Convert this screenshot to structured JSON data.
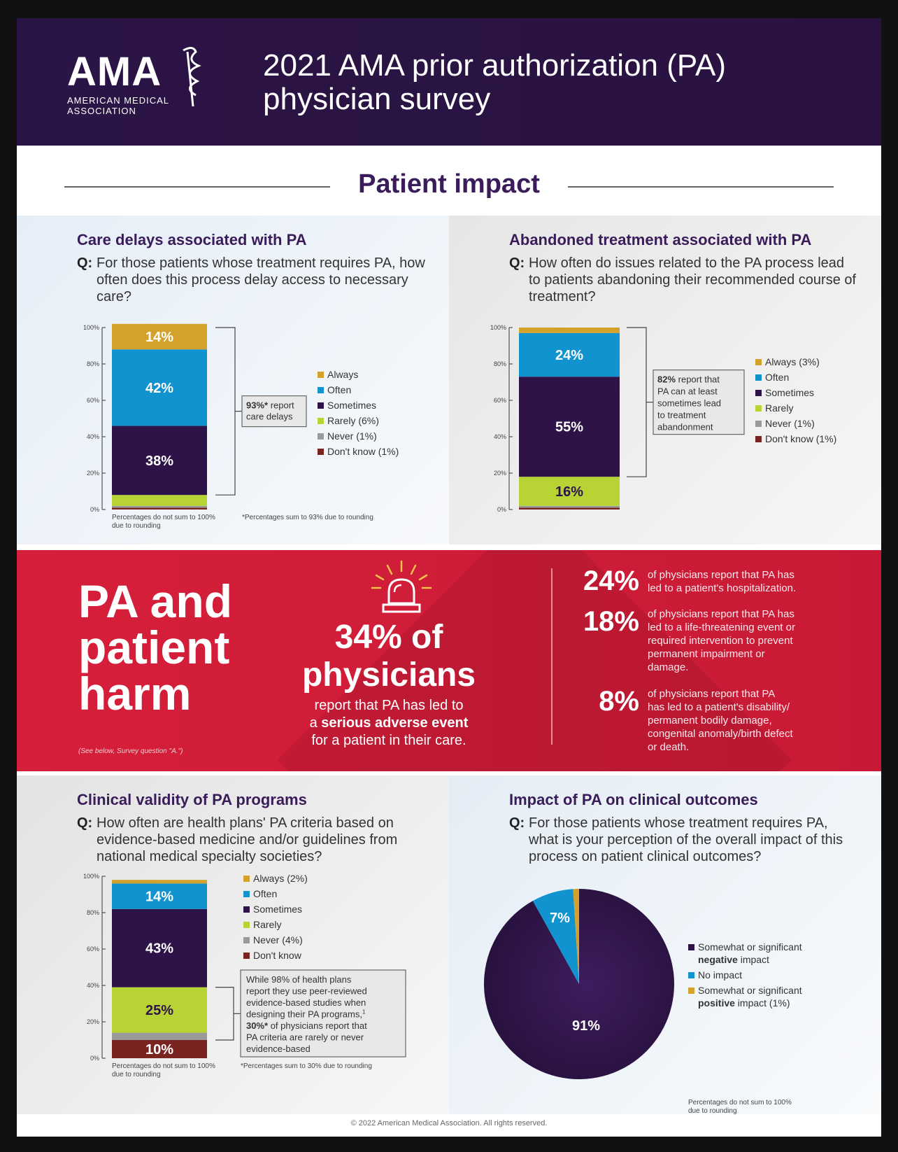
{
  "header": {
    "logo_text": "AMA",
    "logo_sub1": "AMERICAN MEDICAL",
    "logo_sub2": "ASSOCIATION",
    "title_line1": "2021 AMA prior authorization (PA)",
    "title_line2": "physician survey"
  },
  "section_title": "Patient impact",
  "colors": {
    "always": "#d4a12b",
    "often": "#1193cf",
    "sometimes": "#2e1349",
    "rarely": "#b7d334",
    "never": "#9a9a9a",
    "dontknow": "#7a2420",
    "red_band": "#d11f3b",
    "purple_title": "#3a1c5a"
  },
  "panels": {
    "care_delays": {
      "title": "Care delays associated with PA",
      "q_label": "Q:",
      "question": "For those patients whose treatment requires PA, how often does this process delay access to necessary care?",
      "callout_bold": "93%*",
      "callout_rest1": " report",
      "callout_rest2": "care delays",
      "footnote_left1": "Percentages do not sum to 100%",
      "footnote_left2": "due to rounding",
      "footnote_right": "*Percentages sum to 93% due to rounding"
    },
    "abandoned": {
      "title": "Abandoned treatment associated with PA",
      "q_label": "Q:",
      "question": "How often do issues related to the PA process lead to patients abandoning their recommended course of treatment?",
      "callout_bold": "82%",
      "callout_l1": " report that",
      "callout_l2": "PA can at least",
      "callout_l3": "sometimes lead",
      "callout_l4": "to treatment",
      "callout_l5": "abandonment"
    },
    "validity": {
      "title": "Clinical validity of PA programs",
      "q_label": "Q:",
      "question": "How often are health plans' PA criteria based on evidence-based medicine and/or guidelines from national medical specialty societies?",
      "callout_l1": "While 98% of health plans",
      "callout_l2": "report they use peer-reviewed",
      "callout_l3": "evidence-based studies when",
      "callout_l4": "designing their PA programs,",
      "callout_sup": "1",
      "callout_bold": "30%*",
      "callout_l5": " of physicians report that",
      "callout_l6": "PA criteria are rarely or never",
      "callout_l7": "evidence-based",
      "footnote_left1": "Percentages do not sum to 100%",
      "footnote_left2": "due to rounding",
      "footnote_right": "*Percentages sum to 30% due to rounding"
    },
    "outcomes": {
      "title": "Impact of PA on clinical outcomes",
      "q_label": "Q:",
      "question": "For those patients whose treatment requires PA, what is your perception of the overall impact of this process on patient clinical outcomes?",
      "footnote1": "Percentages do not sum to 100%",
      "footnote2": "due to rounding"
    }
  },
  "harm": {
    "title_l1": "PA and",
    "title_l2": "patient",
    "title_l3": "harm",
    "note": "(See below, Survey question \"A.\")",
    "big_l1": "34% of",
    "big_l2": "physicians",
    "sub_l1": "report that PA has led to",
    "sub_l2a": "a ",
    "sub_l2b": "serious adverse event",
    "sub_l3": "for a patient in their care.",
    "stats": [
      {
        "num": "24%",
        "lines": [
          "of physicians report that PA has",
          "led to a patient's hospitalization."
        ]
      },
      {
        "num": "18%",
        "lines": [
          "of physicians report that PA has",
          "led to a life-threatening event or",
          "required intervention to prevent",
          "permanent impairment or",
          "damage."
        ]
      },
      {
        "num": "8%",
        "lines": [
          "of physicians report that PA",
          "has led to a patient's disability/",
          "permanent bodily damage,",
          "congenital anomaly/birth defect",
          "or death."
        ]
      }
    ]
  },
  "footer": "© 2022 American Medical Association. All rights reserved.",
  "chart_data": [
    {
      "type": "bar",
      "title": "Care delays associated with PA",
      "stacked": true,
      "ylim": [
        0,
        100
      ],
      "yticks": [
        "0%",
        "20%",
        "40%",
        "60%",
        "80%",
        "100%"
      ],
      "segments": [
        {
          "name": "Don't know",
          "value": 1,
          "label": ""
        },
        {
          "name": "Never",
          "value": 1,
          "label": ""
        },
        {
          "name": "Rarely",
          "value": 6,
          "label": ""
        },
        {
          "name": "Sometimes",
          "value": 38,
          "label": "38%"
        },
        {
          "name": "Often",
          "value": 42,
          "label": "42%"
        },
        {
          "name": "Always",
          "value": 14,
          "label": "14%"
        }
      ],
      "legend": [
        "Always",
        "Often",
        "Sometimes",
        "Rarely (6%)",
        "Never (1%)",
        "Don't know (1%)"
      ]
    },
    {
      "type": "bar",
      "title": "Abandoned treatment associated with PA",
      "stacked": true,
      "ylim": [
        0,
        100
      ],
      "yticks": [
        "0%",
        "20%",
        "40%",
        "60%",
        "80%",
        "100%"
      ],
      "segments": [
        {
          "name": "Don't know",
          "value": 1,
          "label": ""
        },
        {
          "name": "Never",
          "value": 1,
          "label": ""
        },
        {
          "name": "Rarely",
          "value": 16,
          "label": "16%"
        },
        {
          "name": "Sometimes",
          "value": 55,
          "label": "55%"
        },
        {
          "name": "Often",
          "value": 24,
          "label": "24%"
        },
        {
          "name": "Always",
          "value": 3,
          "label": ""
        }
      ],
      "legend": [
        "Always (3%)",
        "Often",
        "Sometimes",
        "Rarely",
        "Never (1%)",
        "Don't know (1%)"
      ]
    },
    {
      "type": "bar",
      "title": "Clinical validity of PA programs",
      "stacked": true,
      "ylim": [
        0,
        100
      ],
      "yticks": [
        "0%",
        "20%",
        "40%",
        "60%",
        "80%",
        "100%"
      ],
      "segments": [
        {
          "name": "Don't know",
          "value": 10,
          "label": "10%"
        },
        {
          "name": "Never",
          "value": 4,
          "label": ""
        },
        {
          "name": "Rarely",
          "value": 25,
          "label": "25%"
        },
        {
          "name": "Sometimes",
          "value": 43,
          "label": "43%"
        },
        {
          "name": "Often",
          "value": 14,
          "label": "14%"
        },
        {
          "name": "Always",
          "value": 2,
          "label": ""
        }
      ],
      "legend": [
        "Always (2%)",
        "Often",
        "Sometimes",
        "Rarely",
        "Never (4%)",
        "Don't know"
      ]
    },
    {
      "type": "pie",
      "title": "Impact of PA on clinical outcomes",
      "slices": [
        {
          "name": "Somewhat or significant negative impact",
          "value": 91,
          "label": "91%"
        },
        {
          "name": "No impact",
          "value": 7,
          "label": "7%"
        },
        {
          "name": "Somewhat or significant positive impact",
          "value": 1,
          "label": ""
        }
      ],
      "legend": [
        {
          "l1": "Somewhat or significant",
          "l2a": "",
          "l2b": "negative",
          "l2c": " impact"
        },
        {
          "l1": "No impact",
          "l2a": "",
          "l2b": "",
          "l2c": ""
        },
        {
          "l1": "Somewhat or significant",
          "l2a": "",
          "l2b": "positive",
          "l2c": " impact (1%)"
        }
      ]
    }
  ]
}
